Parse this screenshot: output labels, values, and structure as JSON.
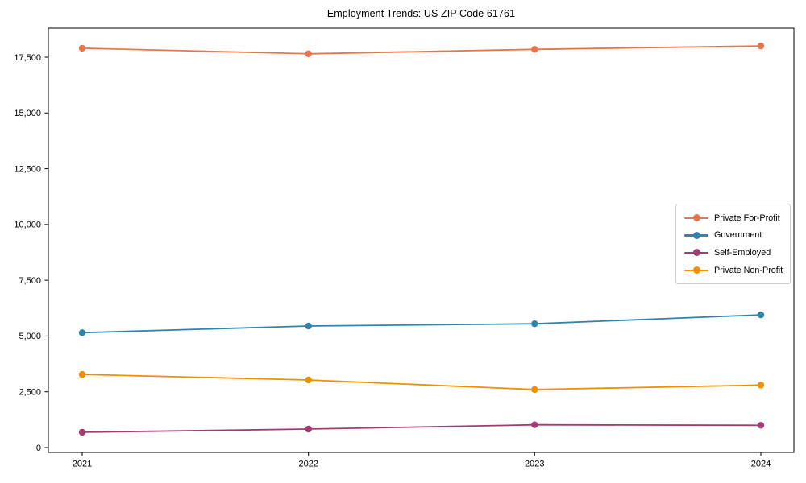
{
  "chart_data": {
    "type": "line",
    "title": "Employment Trends: US ZIP Code 61761",
    "categories": [
      "2021",
      "2022",
      "2023",
      "2024"
    ],
    "series": [
      {
        "name": "Private For-Profit",
        "color": "#E8764B",
        "values": [
          17900,
          17650,
          17850,
          18000
        ]
      },
      {
        "name": "Government",
        "color": "#2E86AB",
        "values": [
          5150,
          5450,
          5550,
          5950
        ]
      },
      {
        "name": "Self-Employed",
        "color": "#A23B72",
        "values": [
          690,
          830,
          1020,
          1000
        ]
      },
      {
        "name": "Private Non-Profit",
        "color": "#F18F01",
        "values": [
          3280,
          3030,
          2600,
          2800
        ]
      }
    ],
    "y_axis": {
      "ticks": [
        0,
        2500,
        5000,
        7500,
        10000,
        12500,
        15000,
        17500
      ],
      "tick_labels": [
        "0",
        "2,500",
        "5,000",
        "7,500",
        "10,000",
        "12,500",
        "15,000",
        "17,500"
      ]
    },
    "xlabel": "",
    "ylabel": "",
    "ylim": [
      0,
      18800
    ],
    "grid": false,
    "legend_position": "center right",
    "frame_color": "#000000",
    "text_color": "#000000"
  }
}
